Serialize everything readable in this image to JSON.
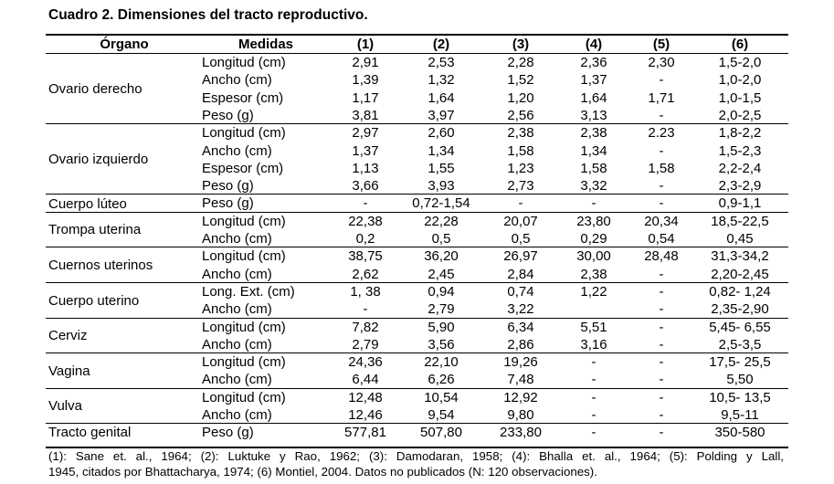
{
  "title": "Cuadro 2. Dimensiones del tracto reproductivo.",
  "headers": [
    "Órgano",
    "Medidas",
    "(1)",
    "(2)",
    "(3)",
    "(4)",
    "(5)",
    "(6)"
  ],
  "groups": [
    {
      "organ": "Ovario derecho",
      "rows": [
        {
          "measure": "Longitud (cm)",
          "values": [
            "2,91",
            "2,53",
            "2,28",
            "2,36",
            "2,30",
            "1,5-2,0"
          ]
        },
        {
          "measure": "Ancho (cm)",
          "values": [
            "1,39",
            "1,32",
            "1,52",
            "1,37",
            "-",
            "1,0-2,0"
          ]
        },
        {
          "measure": "Espesor (cm)",
          "values": [
            "1,17",
            "1,64",
            "1,20",
            "1,64",
            "1,71",
            "1,0-1,5"
          ]
        },
        {
          "measure": "Peso (g)",
          "values": [
            "3,81",
            "3,97",
            "2,56",
            "3,13",
            "-",
            "2,0-2,5"
          ]
        }
      ]
    },
    {
      "organ": "Ovario izquierdo",
      "rows": [
        {
          "measure": "Longitud (cm)",
          "values": [
            "2,97",
            "2,60",
            "2,38",
            "2,38",
            "2.23",
            "1,8-2,2"
          ]
        },
        {
          "measure": "Ancho (cm)",
          "values": [
            "1,37",
            "1,34",
            "1,58",
            "1,34",
            "-",
            "1,5-2,3"
          ]
        },
        {
          "measure": "Espesor (cm)",
          "values": [
            "1,13",
            "1,55",
            "1,23",
            "1,58",
            "1,58",
            "2,2-2,4"
          ]
        },
        {
          "measure": "Peso (g)",
          "values": [
            "3,66",
            "3,93",
            "2,73",
            "3,32",
            "-",
            "2,3-2,9"
          ]
        }
      ]
    },
    {
      "organ": "Cuerpo lúteo",
      "rows": [
        {
          "measure": "Peso (g)",
          "values": [
            "-",
            "0,72-1,54",
            "-",
            "-",
            "-",
            "0,9-1,1"
          ]
        }
      ]
    },
    {
      "organ": "Trompa uterina",
      "rows": [
        {
          "measure": "Longitud (cm)",
          "values": [
            "22,38",
            "22,28",
            "20,07",
            "23,80",
            "20,34",
            "18,5-22,5"
          ]
        },
        {
          "measure": "Ancho (cm)",
          "values": [
            "0,2",
            "0,5",
            "0,5",
            "0,29",
            "0,54",
            "0,45"
          ]
        }
      ]
    },
    {
      "organ": "Cuernos uterinos",
      "rows": [
        {
          "measure": "Longitud (cm)",
          "values": [
            "38,75",
            "36,20",
            "26,97",
            "30,00",
            "28,48",
            "31,3-34,2"
          ]
        },
        {
          "measure": "Ancho (cm)",
          "values": [
            "2,62",
            "2,45",
            "2,84",
            "2,38",
            "-",
            "2,20-2,45"
          ]
        }
      ]
    },
    {
      "organ": "Cuerpo uterino",
      "rows": [
        {
          "measure": "Long. Ext. (cm)",
          "values": [
            "1, 38",
            "0,94",
            "0,74",
            "1,22",
            "-",
            "0,82- 1,24"
          ]
        },
        {
          "measure": "Ancho (cm)",
          "values": [
            "-",
            "2,79",
            "3,22",
            "",
            "-",
            "2,35-2,90"
          ]
        }
      ]
    },
    {
      "organ": "Cerviz",
      "rows": [
        {
          "measure": "Longitud (cm)",
          "values": [
            "7,82",
            "5,90",
            "6,34",
            "5,51",
            "-",
            "5,45- 6,55"
          ]
        },
        {
          "measure": "Ancho (cm)",
          "values": [
            "2,79",
            "3,56",
            "2,86",
            "3,16",
            "-",
            "2,5-3,5"
          ]
        }
      ]
    },
    {
      "organ": "Vagina",
      "rows": [
        {
          "measure": "Longitud (cm)",
          "values": [
            "24,36",
            "22,10",
            "19,26",
            "-",
            "-",
            "17,5- 25,5"
          ]
        },
        {
          "measure": "Ancho (cm)",
          "values": [
            "6,44",
            "6,26",
            "7,48",
            "-",
            "-",
            "5,50"
          ]
        }
      ]
    },
    {
      "organ": "Vulva",
      "rows": [
        {
          "measure": "Longitud (cm)",
          "values": [
            "12,48",
            "10,54",
            "12,92",
            "-",
            "-",
            "10,5- 13,5"
          ]
        },
        {
          "measure": "Ancho (cm)",
          "values": [
            "12,46",
            "9,54",
            "9,80",
            "-",
            "-",
            "9,5-11"
          ]
        }
      ]
    },
    {
      "organ": "Tracto genital",
      "rows": [
        {
          "measure": "Peso (g)",
          "values": [
            "577,81",
            "507,80",
            "233,80",
            "-",
            "-",
            "350-580"
          ]
        }
      ]
    }
  ],
  "footnote": {
    "line1": "(1): Sane et. al., 1964; (2): Luktuke y Rao, 1962; (3): Damodaran, 1958; (4): Bhalla et. al., 1964; (5): Polding y Lall,",
    "line2": "1945, citados por Bhattacharya, 1974; (6) Montiel, 2004. Datos no publicados (N: 120 observaciones)."
  }
}
